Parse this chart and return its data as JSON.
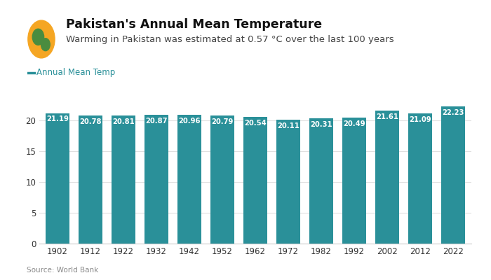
{
  "title": "Pakistan's Annual Mean Temperature",
  "subtitle": "Warming in Pakistan was estimated at 0.57 °C over the last 100 years",
  "legend_label": "Annual Mean Temp",
  "source": "Source: World Bank",
  "years": [
    1902,
    1912,
    1922,
    1932,
    1942,
    1952,
    1962,
    1972,
    1982,
    1992,
    2002,
    2012,
    2022
  ],
  "values": [
    21.19,
    20.78,
    20.81,
    20.87,
    20.96,
    20.79,
    20.54,
    20.11,
    20.31,
    20.49,
    21.61,
    21.09,
    22.23
  ],
  "bar_color": "#2a9099",
  "legend_color": "#2a9099",
  "title_color": "#111111",
  "subtitle_color": "#444444",
  "source_color": "#888888",
  "background_color": "#ffffff",
  "ylim": [
    0,
    25
  ],
  "yticks": [
    0,
    5,
    10,
    15,
    20
  ],
  "grid_color": "#e0e0e0",
  "label_fontsize": 7.2,
  "title_fontsize": 12.5,
  "subtitle_fontsize": 9.5,
  "legend_fontsize": 8.5,
  "source_fontsize": 7.5,
  "tick_fontsize": 8.5
}
